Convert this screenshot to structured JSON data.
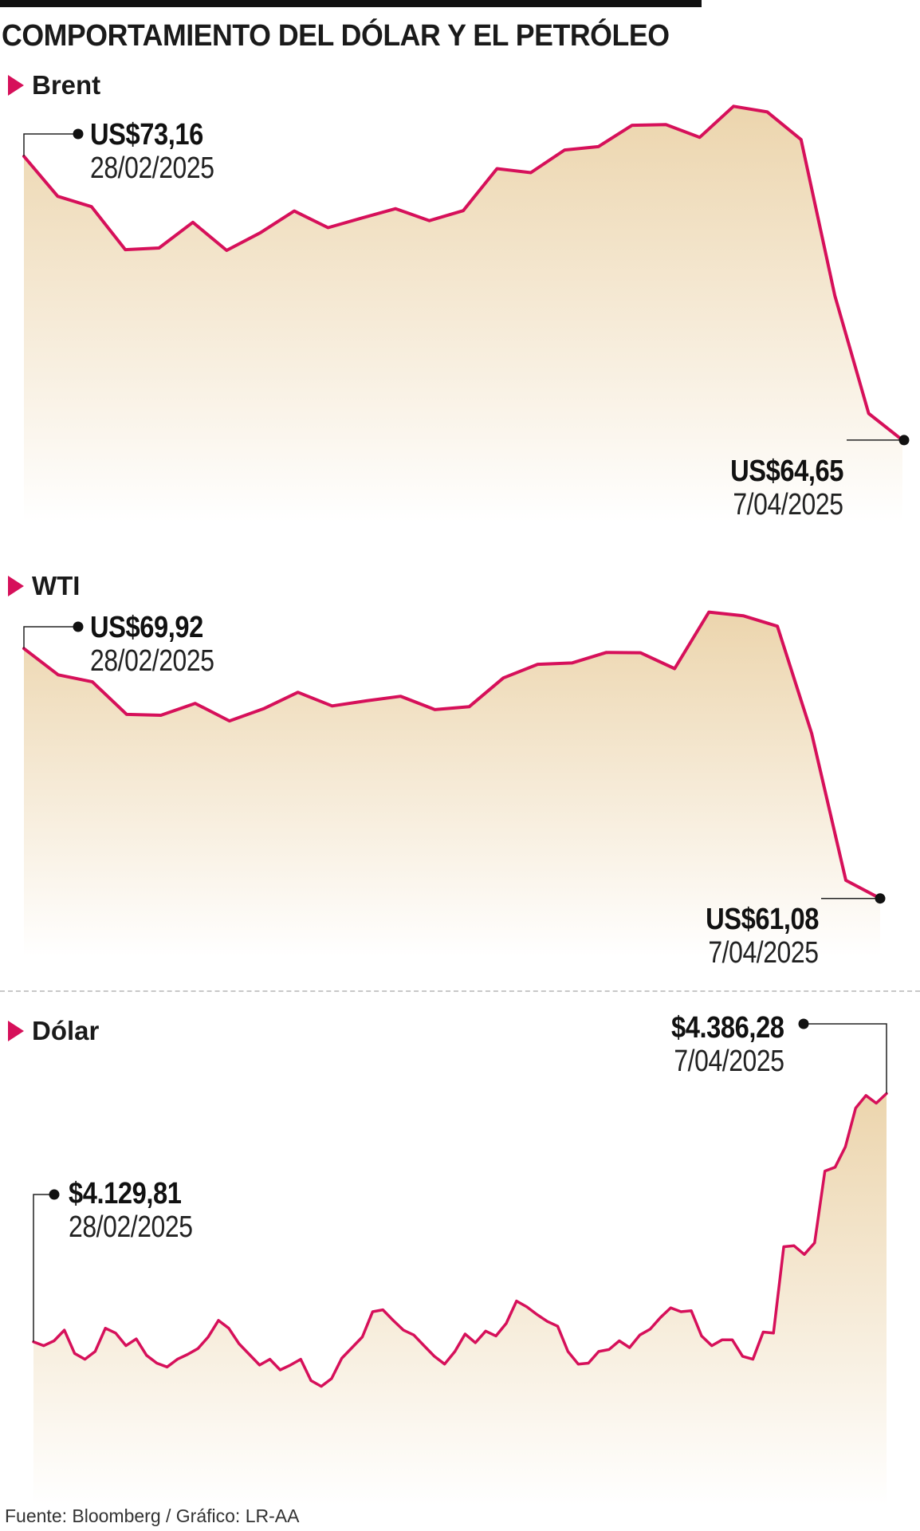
{
  "title": "COMPORTAMIENTO DEL DÓLAR Y EL PETRÓLEO",
  "source": "Fuente: Bloomberg / Gráfico: LR-AA",
  "colors": {
    "line": "#d6105a",
    "fill_top": "#ecd5ad",
    "fill_bottom": "#ffffff",
    "marker": "#111111",
    "accent": "#d6105a"
  },
  "chart_data": [
    {
      "type": "area",
      "title": "Brent",
      "start_label": {
        "value": "US$73,16",
        "date": "28/02/2025"
      },
      "end_label": {
        "value": "US$64,65",
        "date": "7/04/2025"
      },
      "ylim": [
        63.5,
        74.5
      ],
      "values": [
        73.16,
        71.96,
        71.65,
        70.36,
        70.41,
        71.18,
        70.34,
        70.87,
        71.52,
        71.02,
        71.31,
        71.59,
        71.23,
        71.53,
        72.79,
        72.67,
        73.35,
        73.45,
        74.09,
        74.11,
        73.73,
        74.66,
        74.49,
        73.66,
        68.98,
        65.45,
        64.65
      ],
      "xlabel": "",
      "ylabel": ""
    },
    {
      "type": "area",
      "title": "WTI",
      "start_label": {
        "value": "US$69,92",
        "date": "28/02/2025"
      },
      "end_label": {
        "value": "US$61,08",
        "date": "7/04/2025"
      },
      "ylim": [
        60.0,
        71.0
      ],
      "values": [
        69.92,
        68.99,
        68.74,
        67.59,
        67.56,
        67.98,
        67.36,
        67.79,
        68.37,
        67.89,
        68.07,
        68.23,
        67.76,
        67.86,
        68.88,
        69.36,
        69.41,
        69.78,
        69.77,
        69.21,
        71.21,
        71.08,
        70.71,
        66.92,
        61.72,
        61.08
      ],
      "xlabel": "",
      "ylabel": ""
    },
    {
      "type": "line",
      "title": "Dólar",
      "start_label": {
        "value": "$4.129,81",
        "date": "28/02/2025"
      },
      "end_label": {
        "value": "$4.386,28",
        "date": "7/04/2025"
      },
      "ylim": [
        4050,
        4420
      ],
      "values": [
        4130,
        4126,
        4131,
        4142,
        4118,
        4112,
        4120,
        4144,
        4139,
        4126,
        4133,
        4116,
        4108,
        4104,
        4112,
        4117,
        4123,
        4135,
        4152,
        4144,
        4128,
        4117,
        4106,
        4112,
        4101,
        4106,
        4112,
        4090,
        4084,
        4092,
        4113,
        4124,
        4135,
        4161,
        4163,
        4152,
        4142,
        4137,
        4126,
        4115,
        4107,
        4120,
        4138,
        4129,
        4141,
        4136,
        4149,
        4172,
        4166,
        4158,
        4151,
        4146,
        4120,
        4107,
        4108,
        4120,
        4122,
        4131,
        4124,
        4137,
        4143,
        4155,
        4165,
        4161,
        4162,
        4136,
        4126,
        4132,
        4132,
        4115,
        4112,
        4140,
        4139,
        4228,
        4229,
        4220,
        4232,
        4306,
        4310,
        4331,
        4371,
        4384,
        4376,
        4386
      ],
      "xlabel": "",
      "ylabel": ""
    }
  ]
}
